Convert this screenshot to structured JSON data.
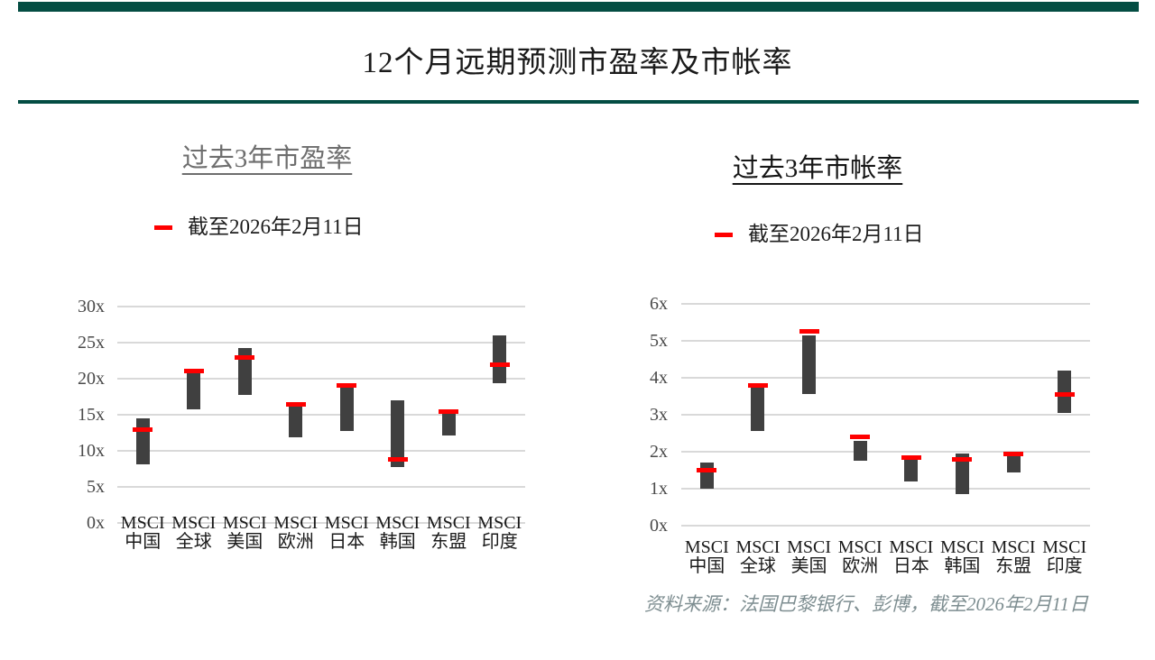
{
  "page": {
    "title": "12个月远期预测市盈率及市帐率"
  },
  "source": {
    "text": "资料来源：法国巴黎银行、彭博，截至2026年2月11日"
  },
  "colors": {
    "accent_teal": "#044d43",
    "range_bar": "#404040",
    "current_marker": "#ff0000",
    "gridline": "#d9d9d9",
    "title_gray": "#6e6e6e",
    "source_gray": "#7e8e91"
  },
  "chart_data": [
    {
      "type": "bar",
      "subtype": "floating-range-with-marker",
      "title": "过去3年市盈率",
      "categories": [
        "MSCI 中国",
        "MSCI 全球",
        "MSCI 美国",
        "MSCI 欧洲",
        "MSCI 日本",
        "MSCI 韩国",
        "MSCI 东盟",
        "MSCI 印度"
      ],
      "ranges": {
        "low": [
          8.1,
          15.8,
          17.8,
          11.9,
          12.8,
          7.8,
          12.1,
          19.4
        ],
        "high": [
          14.5,
          20.7,
          24.3,
          16.5,
          18.9,
          17.0,
          15.1,
          26.0
        ]
      },
      "current": {
        "name": "截至2026年2月11日",
        "values": [
          13.0,
          21.1,
          23.0,
          16.4,
          19.1,
          8.8,
          15.4,
          22.0
        ]
      },
      "ylim": [
        0,
        30
      ],
      "ytick_step": 5,
      "ytick_labels": [
        "0x",
        "5x",
        "10x",
        "15x",
        "20x",
        "25x",
        "30x"
      ],
      "xlabel": "",
      "ylabel": "",
      "grid": true,
      "legend_position": "top"
    },
    {
      "type": "bar",
      "subtype": "floating-range-with-marker",
      "title": "过去3年市帐率",
      "categories": [
        "MSCI 中国",
        "MSCI 全球",
        "MSCI 美国",
        "MSCI 欧洲",
        "MSCI 日本",
        "MSCI 韩国",
        "MSCI 东盟",
        "MSCI 印度"
      ],
      "ranges": {
        "low": [
          1.0,
          2.55,
          3.55,
          1.75,
          1.2,
          0.85,
          1.45,
          3.05
        ],
        "high": [
          1.7,
          3.75,
          5.15,
          2.3,
          1.9,
          1.95,
          1.9,
          4.2
        ]
      },
      "current": {
        "name": "截至2026年2月11日",
        "values": [
          1.5,
          3.8,
          5.25,
          2.4,
          1.85,
          1.8,
          1.95,
          3.55
        ]
      },
      "ylim": [
        0,
        6
      ],
      "ytick_step": 1,
      "ytick_labels": [
        "0x",
        "1x",
        "2x",
        "3x",
        "4x",
        "5x",
        "6x"
      ],
      "xlabel": "",
      "ylabel": "",
      "grid": true,
      "legend_position": "top"
    }
  ]
}
